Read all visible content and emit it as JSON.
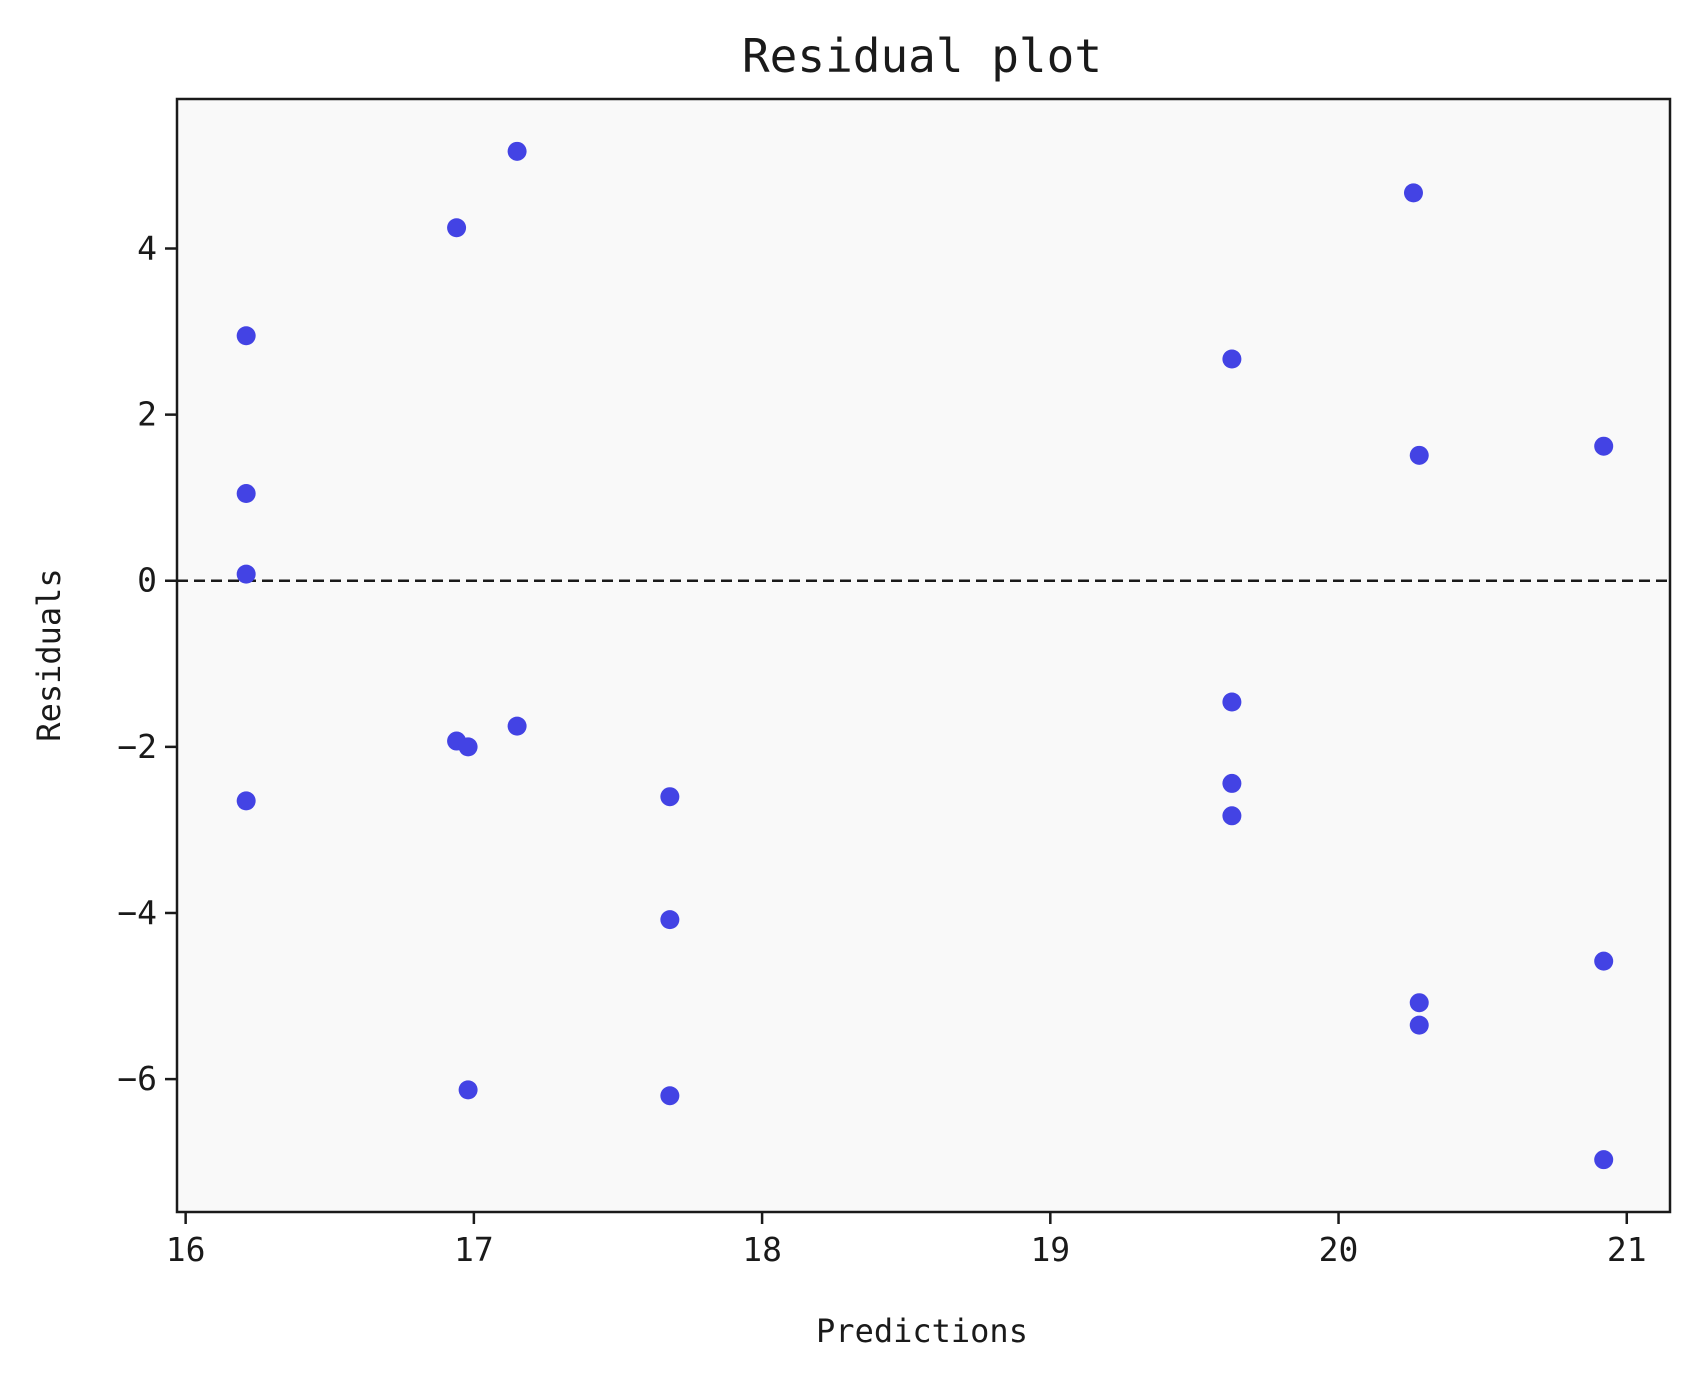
{
  "chart_data": {
    "type": "scatter",
    "title": "Residual plot",
    "xlabel": "Predictions",
    "ylabel": "Residuals",
    "xlim": [
      15.97,
      21.15
    ],
    "ylim": [
      -7.6,
      5.8
    ],
    "xticks": [
      16,
      17,
      18,
      19,
      20,
      21
    ],
    "yticks": [
      -6,
      -4,
      -2,
      0,
      2,
      4
    ],
    "xtick_labels": [
      "16",
      "17",
      "18",
      "19",
      "20",
      "21"
    ],
    "ytick_labels": [
      "−6",
      "−4",
      "−2",
      "0",
      "2",
      "4"
    ],
    "grid": false,
    "legend": null,
    "reference_line": {
      "y": 0,
      "style": "dashed"
    },
    "colors": {
      "point": "#4343e4",
      "plot_background": "#f9f9f9",
      "axis": "#1a1a1a",
      "reference_line": "#1a1a1a"
    },
    "points": [
      {
        "x": 16.21,
        "y": 2.95
      },
      {
        "x": 16.21,
        "y": 1.05
      },
      {
        "x": 16.21,
        "y": 0.08
      },
      {
        "x": 16.21,
        "y": -2.65
      },
      {
        "x": 16.94,
        "y": 4.25
      },
      {
        "x": 16.94,
        "y": -1.93
      },
      {
        "x": 16.98,
        "y": -2.0
      },
      {
        "x": 16.98,
        "y": -6.13
      },
      {
        "x": 17.15,
        "y": 5.17
      },
      {
        "x": 17.15,
        "y": -1.75
      },
      {
        "x": 17.68,
        "y": -2.6
      },
      {
        "x": 17.68,
        "y": -4.08
      },
      {
        "x": 17.68,
        "y": -6.2
      },
      {
        "x": 19.63,
        "y": 2.67
      },
      {
        "x": 19.63,
        "y": -1.46
      },
      {
        "x": 19.63,
        "y": -2.44
      },
      {
        "x": 19.63,
        "y": -2.83
      },
      {
        "x": 20.26,
        "y": 4.67
      },
      {
        "x": 20.28,
        "y": 1.51
      },
      {
        "x": 20.28,
        "y": -5.08
      },
      {
        "x": 20.28,
        "y": -5.35
      },
      {
        "x": 20.92,
        "y": 1.62
      },
      {
        "x": 20.92,
        "y": -4.58
      },
      {
        "x": 20.92,
        "y": -6.97
      }
    ]
  }
}
